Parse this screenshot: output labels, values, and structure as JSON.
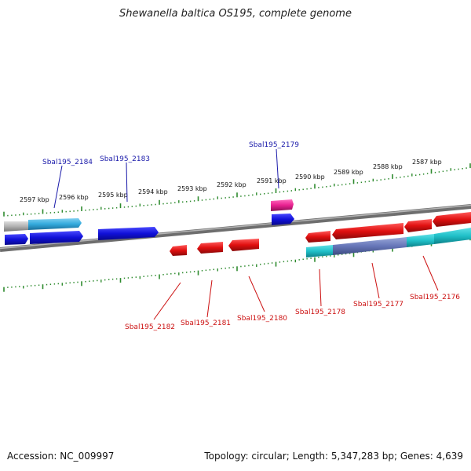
{
  "title": "Shewanella baltica OS195, complete genome",
  "footer": {
    "accession": "Accession: NC_009997",
    "summary": "Topology: circular; Length: 5,347,283 bp; Genes: 4,639"
  },
  "colors": {
    "backbone": "#7a7a7a",
    "tick": "#2e8b2e",
    "label_forward": "#1a1aaa",
    "label_reverse": "#cc1111",
    "forward_gene": "#1010d8",
    "reverse_gene": "#e01010",
    "cds_cyan": "#20c0c8",
    "cds_lightblue": "#33aadd",
    "rna_magenta": "#e8208f",
    "pseudo_gray": "#b0b0b0"
  },
  "scale_labels": [
    "2597 kbp",
    "2596 kbp",
    "2595 kbp",
    "2594 kbp",
    "2593 kbp",
    "2592 kbp",
    "2591 kbp",
    "2590 kbp",
    "2589 kbp",
    "2588 kbp",
    "2587 kbp"
  ],
  "forward_labels": [
    "Sbal195_2184",
    "Sbal195_2183",
    "Sbal195_2179"
  ],
  "reverse_labels": [
    "Sbal195_2182",
    "Sbal195_2181",
    "Sbal195_2180",
    "Sbal195_2178",
    "Sbal195_2177",
    "Sbal195_2176"
  ]
}
